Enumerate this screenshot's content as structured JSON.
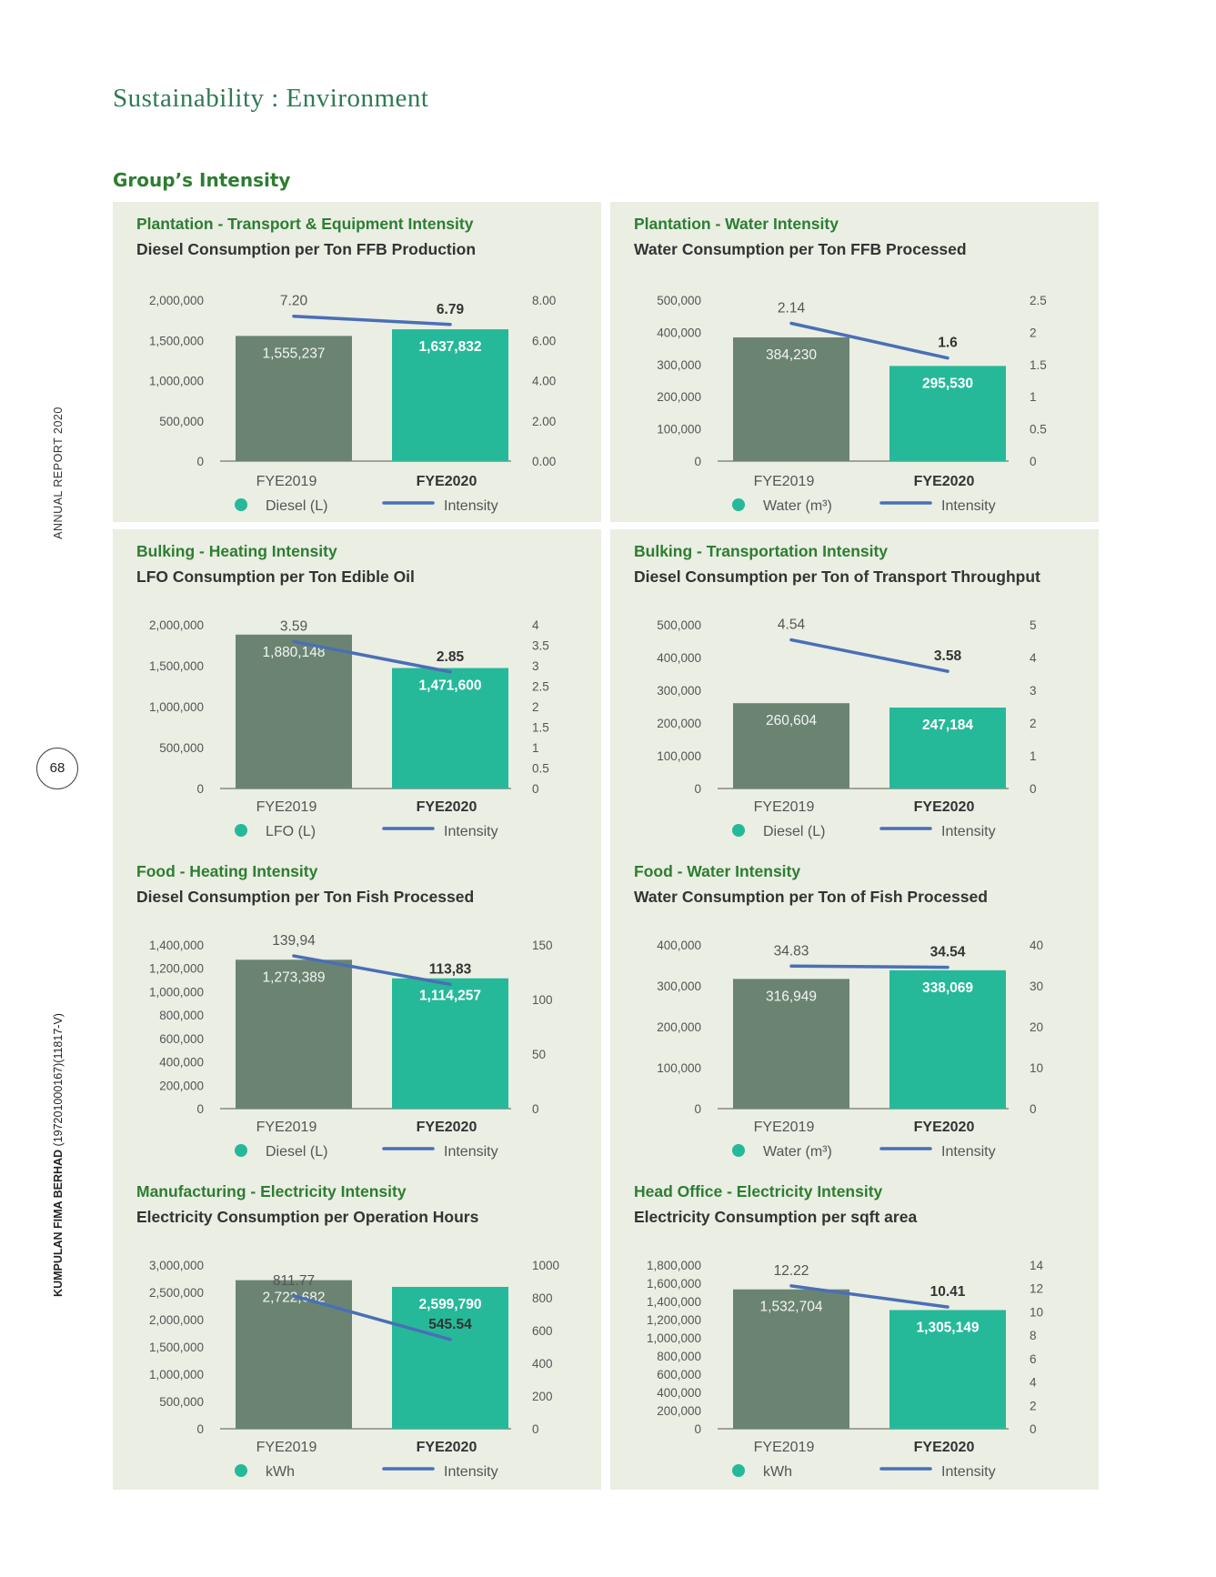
{
  "page": {
    "title": "Sustainability : Environment",
    "section": "Group’s Intensity",
    "side_label": "ANNUAL REPORT 2020",
    "company_bold": "KUMPULAN FIMA BERHAD",
    "company_reg": " (197201000167)(11817-V)",
    "page_number": "68"
  },
  "colors": {
    "bar2019": "#6b8472",
    "bar2020": "#26b999",
    "intensity_line": "#4a6fb5",
    "heading_green": "#2e7d32"
  },
  "chart_data": [
    {
      "type": "bar",
      "title": "Plantation - Transport & Equipment Intensity",
      "subtitle": "Diesel Consumption per Ton FFB Production",
      "categories": [
        "FYE2019",
        "FYE2020"
      ],
      "series": [
        {
          "name": "Diesel (L)",
          "values": [
            1555237,
            1637832
          ]
        },
        {
          "name": "Intensity",
          "type": "line",
          "values": [
            7.2,
            6.79
          ]
        }
      ],
      "bar_labels": [
        "1,555,237",
        "1,637,832"
      ],
      "line_labels": [
        "7.20",
        "6.79"
      ],
      "ylim": [
        0,
        2000000
      ],
      "y2lim": [
        0,
        8
      ],
      "yticks": [
        "0",
        "500,000",
        "1,000,000",
        "1,500,000",
        "2,000,000"
      ],
      "y2ticks": [
        "0.00",
        "2.00",
        "4.00",
        "6.00",
        "8.00"
      ],
      "legend_bar": "Diesel (L)",
      "legend_line": "Intensity"
    },
    {
      "type": "bar",
      "title": "Plantation - Water Intensity",
      "subtitle": "Water Consumption per Ton FFB Processed",
      "categories": [
        "FYE2019",
        "FYE2020"
      ],
      "series": [
        {
          "name": "Water (m³)",
          "values": [
            384230,
            295530
          ]
        },
        {
          "name": "Intensity",
          "type": "line",
          "values": [
            2.14,
            1.6
          ]
        }
      ],
      "bar_labels": [
        "384,230",
        "295,530"
      ],
      "line_labels": [
        "2.14",
        "1.6"
      ],
      "ylim": [
        0,
        500000
      ],
      "y2lim": [
        0,
        2.5
      ],
      "yticks": [
        "0",
        "100,000",
        "200,000",
        "300,000",
        "400,000",
        "500,000"
      ],
      "y2ticks": [
        "0",
        "0.5",
        "1",
        "1.5",
        "2",
        "2.5"
      ],
      "legend_bar": "Water (m³)",
      "legend_line": "Intensity"
    },
    {
      "type": "bar",
      "title": "Bulking - Heating Intensity",
      "subtitle": "LFO Consumption per Ton Edible Oil",
      "categories": [
        "FYE2019",
        "FYE2020"
      ],
      "series": [
        {
          "name": "LFO (L)",
          "values": [
            1880148,
            1471600
          ]
        },
        {
          "name": "Intensity",
          "type": "line",
          "values": [
            3.59,
            2.85
          ]
        }
      ],
      "bar_labels": [
        "1,880,148",
        "1,471,600"
      ],
      "line_labels": [
        "3.59",
        "2.85"
      ],
      "ylim": [
        0,
        2000000
      ],
      "y2lim": [
        0,
        4
      ],
      "yticks": [
        "0",
        "500,000",
        "1,000,000",
        "1,500,000",
        "2,000,000"
      ],
      "y2ticks": [
        "0",
        "0.5",
        "1",
        "1.5",
        "2",
        "2.5",
        "3",
        "3.5",
        "4"
      ],
      "legend_bar": "LFO (L)",
      "legend_line": "Intensity"
    },
    {
      "type": "bar",
      "title": "Bulking - Transportation Intensity",
      "subtitle": "Diesel Consumption per Ton of Transport Throughput",
      "categories": [
        "FYE2019",
        "FYE2020"
      ],
      "series": [
        {
          "name": "Diesel (L)",
          "values": [
            260604,
            247184
          ]
        },
        {
          "name": "Intensity",
          "type": "line",
          "values": [
            4.54,
            3.58
          ]
        }
      ],
      "bar_labels": [
        "260,604",
        "247,184"
      ],
      "line_labels": [
        "4.54",
        "3.58"
      ],
      "ylim": [
        0,
        500000
      ],
      "y2lim": [
        0,
        5
      ],
      "yticks": [
        "0",
        "100,000",
        "200,000",
        "300,000",
        "400,000",
        "500,000"
      ],
      "y2ticks": [
        "0",
        "1",
        "2",
        "3",
        "4",
        "5"
      ],
      "legend_bar": "Diesel (L)",
      "legend_line": "Intensity"
    },
    {
      "type": "bar",
      "title": "Food - Heating Intensity",
      "subtitle": "Diesel Consumption per Ton Fish Processed",
      "categories": [
        "FYE2019",
        "FYE2020"
      ],
      "series": [
        {
          "name": "Diesel (L)",
          "values": [
            1273389,
            1114257
          ]
        },
        {
          "name": "Intensity",
          "type": "line",
          "values": [
            139.94,
            113.83
          ]
        }
      ],
      "bar_labels": [
        "1,273,389",
        "1,114,257"
      ],
      "line_labels": [
        "139,94",
        "113,83"
      ],
      "ylim": [
        0,
        1400000
      ],
      "y2lim": [
        0,
        150
      ],
      "yticks": [
        "0",
        "200,000",
        "400,000",
        "600,000",
        "800,000",
        "1,000,000",
        "1,200,000",
        "1,400,000"
      ],
      "y2ticks": [
        "0",
        "50",
        "100",
        "150"
      ],
      "legend_bar": "Diesel (L)",
      "legend_line": "Intensity"
    },
    {
      "type": "bar",
      "title": "Food - Water Intensity",
      "subtitle": "Water Consumption per Ton of Fish Processed",
      "categories": [
        "FYE2019",
        "FYE2020"
      ],
      "series": [
        {
          "name": "Water (m³)",
          "values": [
            316949,
            338069
          ]
        },
        {
          "name": "Intensity",
          "type": "line",
          "values": [
            34.83,
            34.54
          ]
        }
      ],
      "bar_labels": [
        "316,949",
        "338,069"
      ],
      "line_labels": [
        "34.83",
        "34.54"
      ],
      "ylim": [
        0,
        400000
      ],
      "y2lim": [
        0,
        40
      ],
      "yticks": [
        "0",
        "100,000",
        "200,000",
        "300,000",
        "400,000"
      ],
      "y2ticks": [
        "0",
        "10",
        "20",
        "30",
        "40"
      ],
      "legend_bar": "Water (m³)",
      "legend_line": "Intensity"
    },
    {
      "type": "bar",
      "title": "Manufacturing - Electricity Intensity",
      "subtitle": "Electricity Consumption per Operation Hours",
      "categories": [
        "FYE2019",
        "FYE2020"
      ],
      "series": [
        {
          "name": "kWh",
          "values": [
            2722682,
            2599790
          ]
        },
        {
          "name": "Intensity",
          "type": "line",
          "values": [
            811.77,
            545.54
          ]
        }
      ],
      "bar_labels": [
        "2,722,682",
        "2,599,790"
      ],
      "line_labels": [
        "811.77",
        "545.54"
      ],
      "ylim": [
        0,
        3000000
      ],
      "y2lim": [
        0,
        1000
      ],
      "yticks": [
        "0",
        "500,000",
        "1,000,000",
        "1,500,000",
        "2,000,000",
        "2,500,000",
        "3,000,000"
      ],
      "y2ticks": [
        "0",
        "200",
        "400",
        "600",
        "800",
        "1000"
      ],
      "legend_bar": "kWh",
      "legend_line": "Intensity"
    },
    {
      "type": "bar",
      "title": "Head Office - Electricity Intensity",
      "subtitle": "Electricity Consumption per sqft area",
      "categories": [
        "FYE2019",
        "FYE2020"
      ],
      "series": [
        {
          "name": "kWh",
          "values": [
            1532704,
            1305149
          ]
        },
        {
          "name": "Intensity",
          "type": "line",
          "values": [
            12.22,
            10.41
          ]
        }
      ],
      "bar_labels": [
        "1,532,704",
        "1,305,149"
      ],
      "line_labels": [
        "12.22",
        "10.41"
      ],
      "ylim": [
        0,
        1800000
      ],
      "y2lim": [
        0,
        14
      ],
      "yticks": [
        "0",
        "200,000",
        "400,000",
        "600,000",
        "800,000",
        "1,000,000",
        "1,200,000",
        "1,400,000",
        "1,600,000",
        "1,800,000"
      ],
      "y2ticks": [
        "0",
        "2",
        "4",
        "6",
        "8",
        "10",
        "12",
        "14"
      ],
      "legend_bar": "kWh",
      "legend_line": "Intensity"
    }
  ]
}
